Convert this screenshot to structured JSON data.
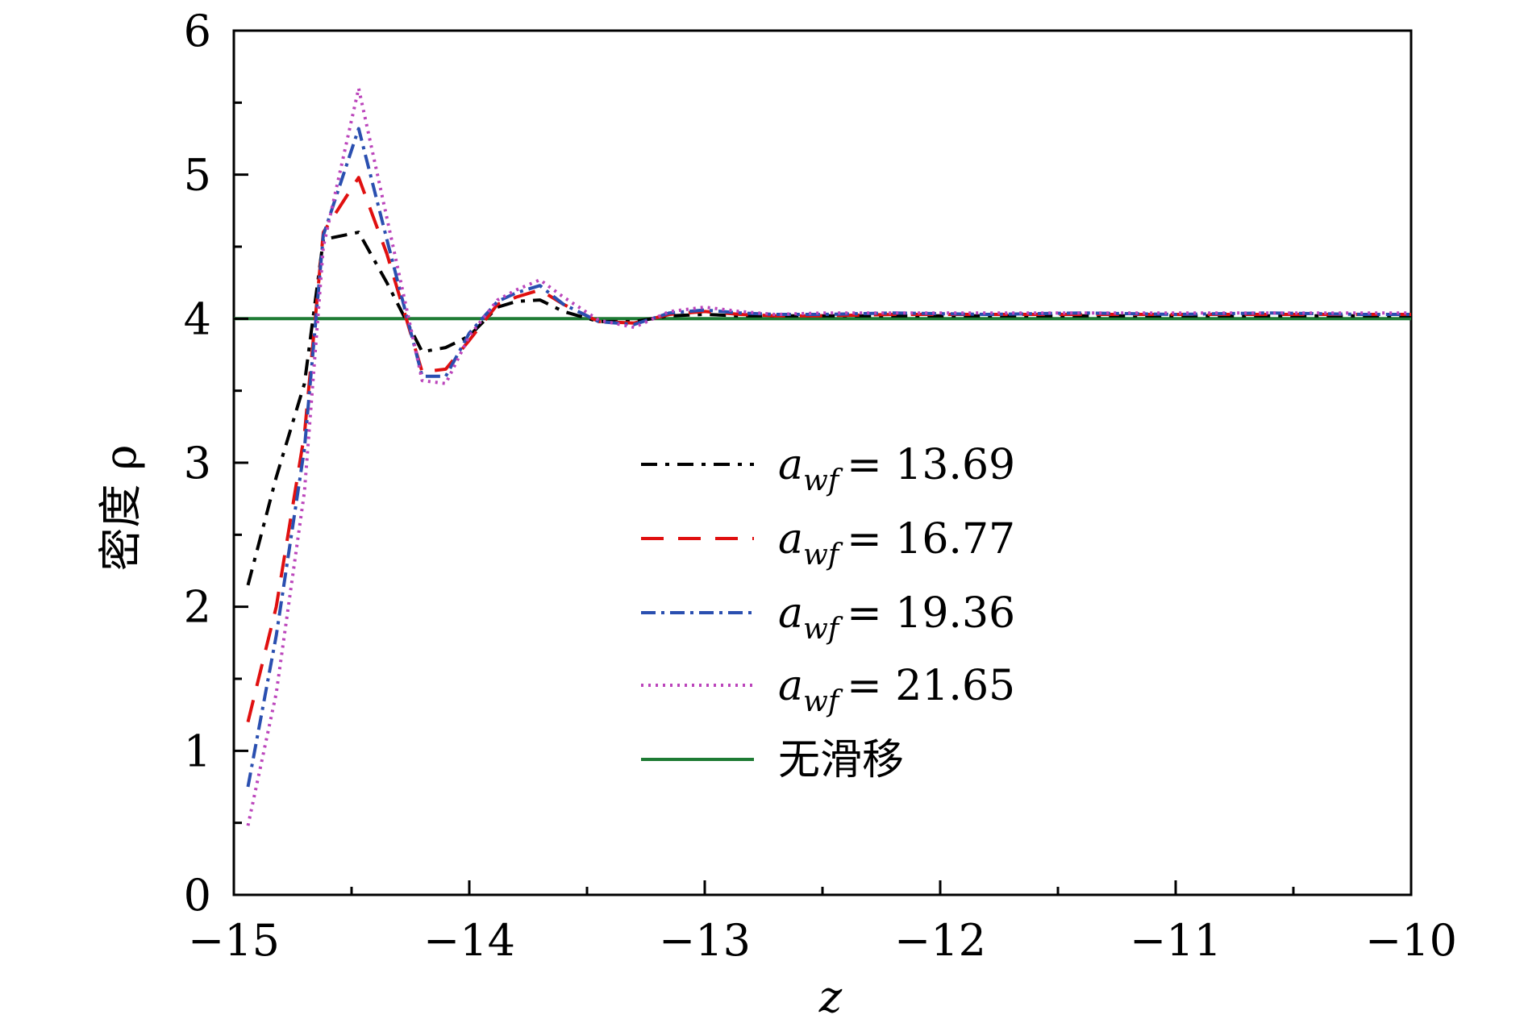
{
  "chart_data": {
    "type": "line",
    "title": "",
    "xlabel": "z",
    "ylabel": "密度 ρ",
    "xlim": [
      -15,
      -10
    ],
    "ylim": [
      0,
      6
    ],
    "xticks": [
      -15,
      -14,
      -13,
      -12,
      -11,
      -10
    ],
    "xtick_labels": [
      "−15",
      "−14",
      "−13",
      "−12",
      "−11",
      "−10"
    ],
    "yticks": [
      0,
      1,
      2,
      3,
      4,
      5,
      6
    ],
    "ytick_labels": [
      "0",
      "1",
      "2",
      "3",
      "4",
      "5",
      "6"
    ],
    "grid": false,
    "legend_position": "center-right",
    "series": [
      {
        "name": "a_wf = 13.69",
        "legend_var": "a",
        "legend_sub": "wf",
        "legend_value": "= 13.69",
        "color": "#000000",
        "dash": "20 10 5 10",
        "x": [
          -14.94,
          -14.82,
          -14.7,
          -14.62,
          -14.47,
          -14.35,
          -14.2,
          -14.1,
          -14.0,
          -13.88,
          -13.8,
          -13.7,
          -13.6,
          -13.45,
          -13.3,
          -13.15,
          -13.0,
          -12.85,
          -12.7,
          -12.5,
          -12.2,
          -11.8,
          -11.4,
          -11.0,
          -10.6,
          -10.2,
          -10.0
        ],
        "y": [
          2.15,
          2.9,
          3.55,
          4.55,
          4.6,
          4.25,
          3.77,
          3.8,
          3.88,
          4.08,
          4.12,
          4.13,
          4.05,
          3.98,
          3.98,
          4.02,
          4.03,
          4.02,
          4.02,
          4.02,
          4.02,
          4.02,
          4.02,
          4.02,
          4.02,
          4.02,
          4.02
        ]
      },
      {
        "name": "a_wf = 16.77",
        "legend_var": "a",
        "legend_sub": "wf",
        "legend_value": "= 16.77",
        "color": "#e01010",
        "dash": "28 18",
        "x": [
          -14.94,
          -14.82,
          -14.7,
          -14.62,
          -14.47,
          -14.35,
          -14.2,
          -14.1,
          -14.0,
          -13.88,
          -13.8,
          -13.7,
          -13.6,
          -13.45,
          -13.3,
          -13.15,
          -13.0,
          -12.85,
          -12.7,
          -12.5,
          -12.2,
          -11.8,
          -11.4,
          -11.0,
          -10.6,
          -10.2,
          -10.0
        ],
        "y": [
          1.2,
          2.0,
          3.2,
          4.6,
          4.98,
          4.45,
          3.63,
          3.65,
          3.85,
          4.1,
          4.15,
          4.2,
          4.1,
          3.98,
          3.97,
          4.03,
          4.05,
          4.03,
          4.02,
          4.02,
          4.03,
          4.03,
          4.03,
          4.03,
          4.03,
          4.03,
          4.03
        ]
      },
      {
        "name": "a_wf = 19.36",
        "legend_var": "a",
        "legend_sub": "wf",
        "legend_value": "= 19.36",
        "color": "#2a4fb0",
        "dash": "18 7 4 7",
        "x": [
          -14.94,
          -14.82,
          -14.7,
          -14.62,
          -14.47,
          -14.35,
          -14.2,
          -14.1,
          -14.0,
          -13.88,
          -13.8,
          -13.7,
          -13.6,
          -13.45,
          -13.3,
          -13.15,
          -13.0,
          -12.85,
          -12.7,
          -12.5,
          -12.2,
          -11.8,
          -11.4,
          -11.0,
          -10.6,
          -10.2,
          -10.0
        ],
        "y": [
          0.75,
          1.8,
          3.1,
          4.58,
          5.32,
          4.55,
          3.6,
          3.6,
          3.9,
          4.12,
          4.18,
          4.23,
          4.1,
          3.98,
          3.96,
          4.04,
          4.06,
          4.04,
          4.03,
          4.03,
          4.04,
          4.03,
          4.04,
          4.03,
          4.04,
          4.03,
          4.03
        ]
      },
      {
        "name": "a_wf = 21.65",
        "legend_var": "a",
        "legend_sub": "wf",
        "legend_value": "= 21.65",
        "color": "#bb44bb",
        "dash": "3 6",
        "x": [
          -14.94,
          -14.82,
          -14.7,
          -14.62,
          -14.47,
          -14.35,
          -14.2,
          -14.1,
          -14.0,
          -13.88,
          -13.8,
          -13.7,
          -13.6,
          -13.45,
          -13.3,
          -13.15,
          -13.0,
          -12.85,
          -12.7,
          -12.5,
          -12.2,
          -11.8,
          -11.4,
          -11.0,
          -10.6,
          -10.2,
          -10.0
        ],
        "y": [
          0.48,
          1.4,
          2.8,
          4.5,
          5.6,
          4.7,
          3.57,
          3.55,
          3.88,
          4.13,
          4.2,
          4.27,
          4.15,
          3.99,
          3.94,
          4.05,
          4.08,
          4.05,
          4.03,
          4.04,
          4.04,
          4.04,
          4.04,
          4.04,
          4.04,
          4.04,
          4.04
        ]
      },
      {
        "name": "无滑移",
        "legend_var": "",
        "legend_sub": "",
        "legend_value": "无滑移",
        "color": "#1e7b34",
        "dash": "",
        "x": [
          -15,
          -10
        ],
        "y": [
          4.0,
          4.0
        ]
      }
    ]
  }
}
